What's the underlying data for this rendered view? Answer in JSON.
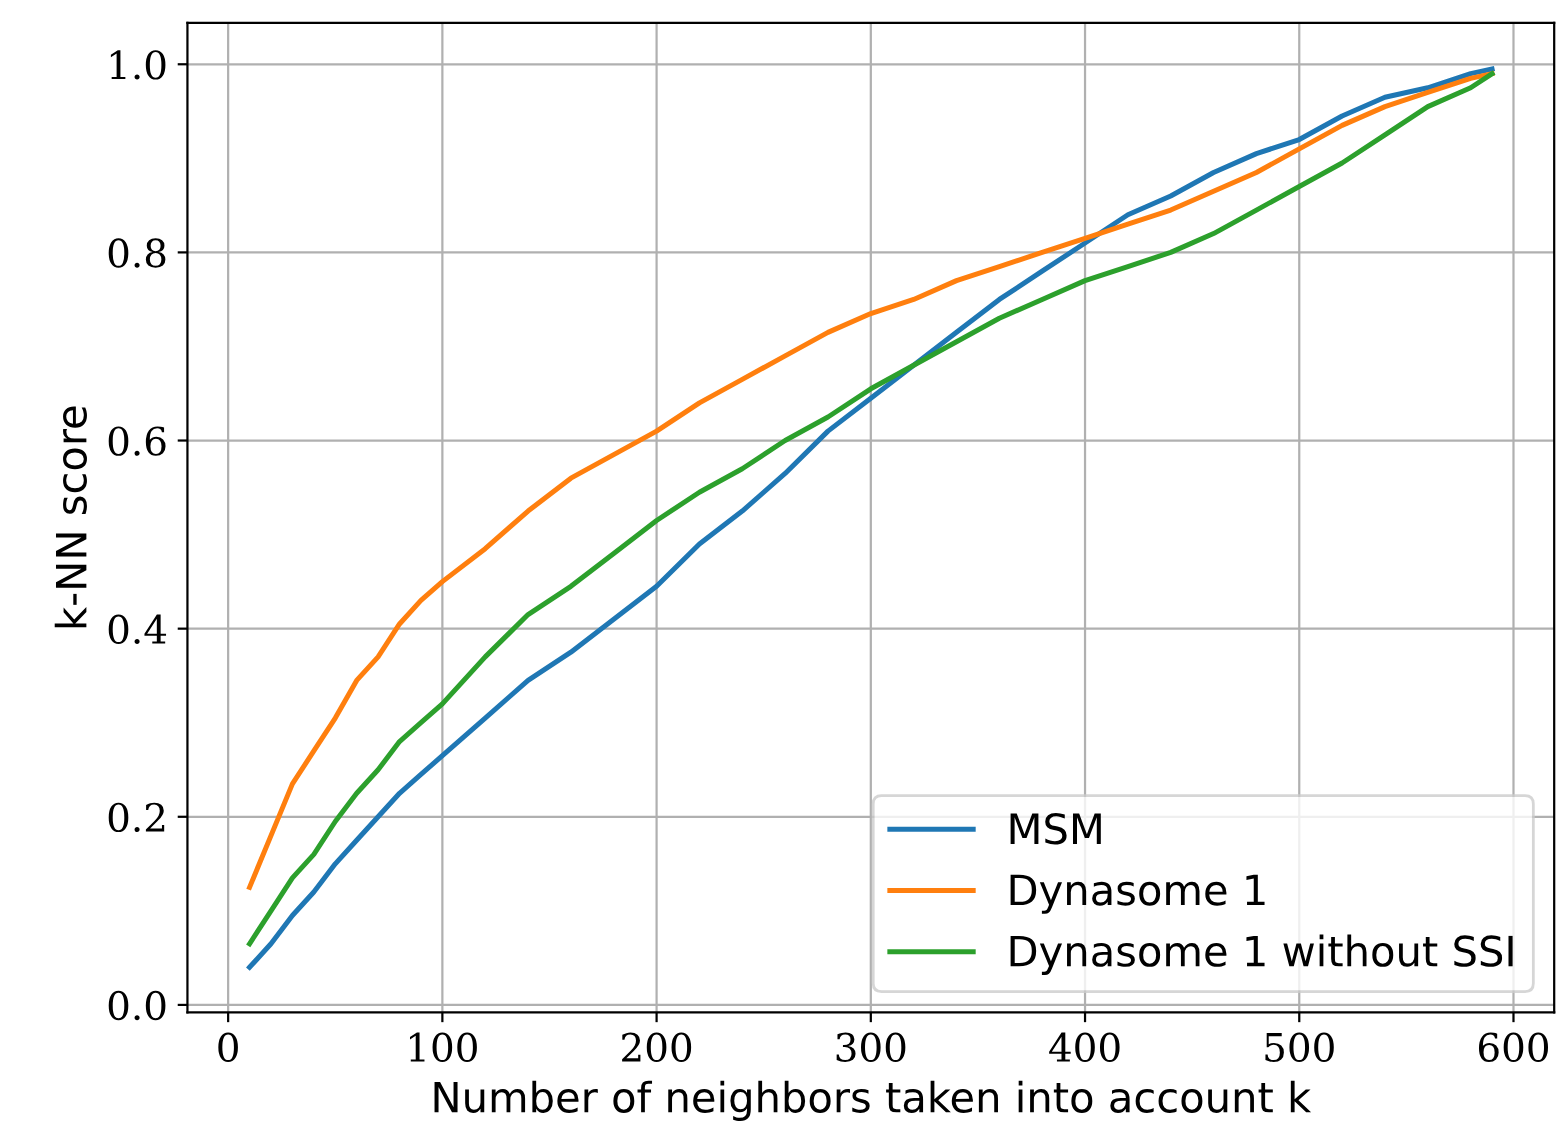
{
  "chart_data": {
    "type": "line",
    "xlabel": "Number of neighbors taken into account k",
    "ylabel": "k-NN score",
    "x": [
      10,
      20,
      30,
      40,
      50,
      60,
      70,
      80,
      90,
      100,
      120,
      140,
      160,
      180,
      200,
      220,
      240,
      260,
      280,
      300,
      320,
      340,
      360,
      380,
      400,
      420,
      440,
      460,
      480,
      500,
      520,
      540,
      560,
      580,
      590
    ],
    "series": [
      {
        "name": "MSM",
        "color": "#1f77b4",
        "values": [
          0.04,
          0.065,
          0.095,
          0.12,
          0.15,
          0.175,
          0.2,
          0.225,
          0.245,
          0.265,
          0.305,
          0.345,
          0.375,
          0.41,
          0.445,
          0.49,
          0.525,
          0.565,
          0.61,
          0.645,
          0.68,
          0.715,
          0.75,
          0.78,
          0.81,
          0.84,
          0.86,
          0.885,
          0.905,
          0.92,
          0.945,
          0.965,
          0.975,
          0.99,
          0.995
        ]
      },
      {
        "name": "Dynasome 1",
        "color": "#ff7f0e",
        "values": [
          0.125,
          0.18,
          0.235,
          0.27,
          0.305,
          0.345,
          0.37,
          0.405,
          0.43,
          0.45,
          0.485,
          0.525,
          0.56,
          0.585,
          0.61,
          0.64,
          0.665,
          0.69,
          0.715,
          0.735,
          0.75,
          0.77,
          0.785,
          0.8,
          0.815,
          0.83,
          0.845,
          0.865,
          0.885,
          0.91,
          0.935,
          0.955,
          0.97,
          0.985,
          0.99
        ]
      },
      {
        "name": "Dynasome 1 without SSI",
        "color": "#2ca02c",
        "values": [
          0.065,
          0.1,
          0.135,
          0.16,
          0.195,
          0.225,
          0.25,
          0.28,
          0.3,
          0.32,
          0.37,
          0.415,
          0.445,
          0.48,
          0.515,
          0.545,
          0.57,
          0.6,
          0.625,
          0.655,
          0.68,
          0.705,
          0.73,
          0.75,
          0.77,
          0.785,
          0.8,
          0.82,
          0.845,
          0.87,
          0.895,
          0.925,
          0.955,
          0.975,
          0.99
        ]
      }
    ],
    "xlim": [
      -19,
      619
    ],
    "ylim": [
      -0.008,
      1.044
    ],
    "xticks": [
      0,
      100,
      200,
      300,
      400,
      500,
      600
    ],
    "yticks": [
      {
        "value": 0,
        "label": "0.0"
      },
      {
        "value": 0.2,
        "label": "0.2"
      },
      {
        "value": 0.4,
        "label": "0.4"
      },
      {
        "value": 0.6,
        "label": "0.6"
      },
      {
        "value": 0.8,
        "label": "0.8"
      },
      {
        "value": 1,
        "label": "1.0"
      }
    ],
    "grid": true,
    "legend": "bottom right",
    "marker": "none",
    "line_style": "solid"
  }
}
